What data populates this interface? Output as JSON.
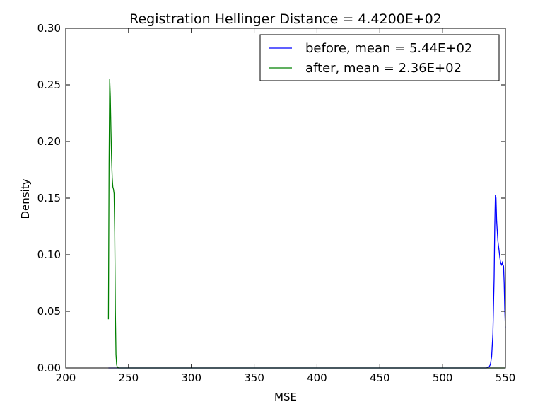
{
  "chart_data": {
    "type": "line",
    "title": "Registration Hellinger Distance = 4.4200E+02",
    "xlabel": "MSE",
    "ylabel": "Density",
    "xlim": [
      200,
      550
    ],
    "ylim": [
      0,
      0.3
    ],
    "xticks": [
      200,
      250,
      300,
      350,
      400,
      450,
      500,
      550
    ],
    "xtick_labels": [
      "200",
      "250",
      "300",
      "350",
      "400",
      "450",
      "500",
      "550"
    ],
    "yticks": [
      0,
      0.05,
      0.1,
      0.15,
      0.2,
      0.25,
      0.3
    ],
    "ytick_labels": [
      "0.00",
      "0.05",
      "0.10",
      "0.15",
      "0.20",
      "0.25",
      "0.30"
    ],
    "grid": false,
    "legend_position": "top-right",
    "series": [
      {
        "name": "before, mean = 5.44E+02",
        "color": "#0000ff",
        "x": [
          234,
          300,
          400,
          500,
          535,
          537,
          538,
          539,
          540,
          541,
          541.5,
          542,
          542.5,
          543,
          544,
          545,
          545.5,
          546,
          546.5,
          547,
          547.5,
          548,
          548.5,
          549,
          549.5,
          550
        ],
        "y": [
          0,
          0,
          0,
          0,
          0,
          0.001,
          0.003,
          0.01,
          0.03,
          0.08,
          0.125,
          0.153,
          0.15,
          0.13,
          0.112,
          0.103,
          0.098,
          0.094,
          0.092,
          0.091,
          0.093,
          0.091,
          0.09,
          0.075,
          0.05,
          0.035
        ]
      },
      {
        "name": "after, mean = 2.36E+02",
        "color": "#008000",
        "x": [
          234,
          234.5,
          235,
          235.5,
          236,
          236.5,
          237,
          237.5,
          238,
          238.5,
          239,
          239.5,
          240,
          240.5,
          241,
          242,
          245,
          300,
          400,
          500,
          550
        ],
        "y": [
          0.043,
          0.18,
          0.255,
          0.24,
          0.21,
          0.185,
          0.168,
          0.16,
          0.158,
          0.154,
          0.12,
          0.05,
          0.012,
          0.003,
          0.001,
          0,
          0,
          0,
          0,
          0,
          0
        ]
      }
    ]
  }
}
